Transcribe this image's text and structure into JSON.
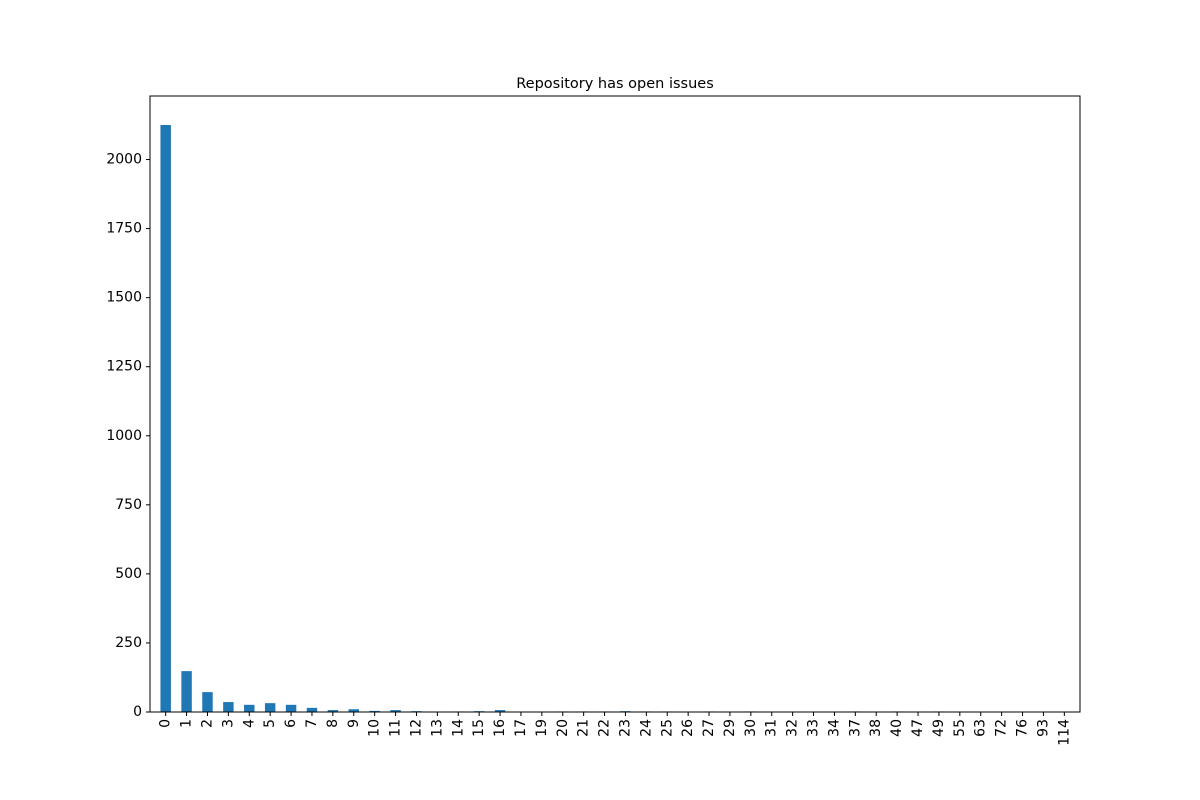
{
  "chart_data": {
    "type": "bar",
    "title": "Repository has open issues",
    "xlabel": "",
    "ylabel": "",
    "ylim": [
      0,
      2230
    ],
    "yticks": [
      0,
      250,
      500,
      750,
      1000,
      1250,
      1500,
      1750,
      2000
    ],
    "grid": false,
    "legend": "none",
    "bar_color": "#1f77b4",
    "categories": [
      "0",
      "1",
      "2",
      "3",
      "4",
      "5",
      "6",
      "7",
      "8",
      "9",
      "10",
      "11",
      "12",
      "13",
      "14",
      "15",
      "16",
      "17",
      "19",
      "20",
      "21",
      "22",
      "23",
      "24",
      "25",
      "26",
      "27",
      "29",
      "30",
      "31",
      "32",
      "33",
      "34",
      "37",
      "38",
      "40",
      "47",
      "49",
      "55",
      "63",
      "72",
      "76",
      "93",
      "114"
    ],
    "values": [
      2125,
      148,
      72,
      36,
      26,
      32,
      26,
      15,
      7,
      10,
      4,
      7,
      3,
      1,
      2,
      3,
      7,
      1,
      1,
      2,
      2,
      2,
      3,
      2,
      2,
      1,
      2,
      1,
      2,
      1,
      1,
      1,
      1,
      2,
      1,
      2,
      1,
      2,
      1,
      1,
      1,
      1,
      1,
      1
    ]
  }
}
